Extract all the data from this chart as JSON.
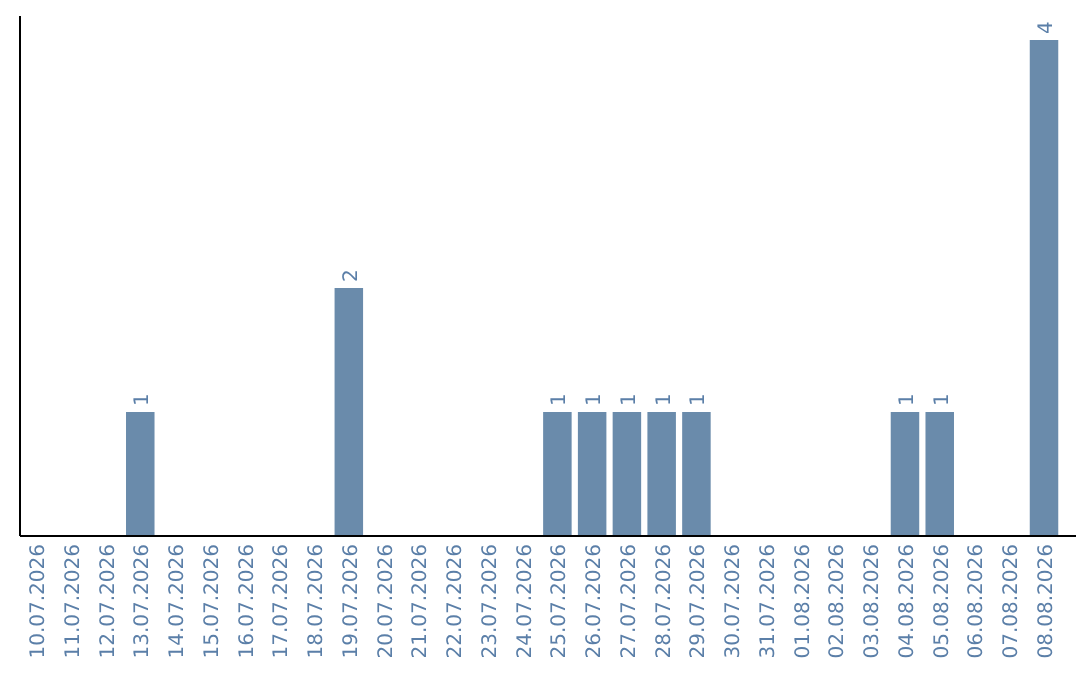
{
  "chart_data": {
    "type": "bar",
    "categories": [
      "10.07.2026",
      "11.07.2026",
      "12.07.2026",
      "13.07.2026",
      "14.07.2026",
      "15.07.2026",
      "16.07.2026",
      "17.07.2026",
      "18.07.2026",
      "19.07.2026",
      "20.07.2026",
      "21.07.2026",
      "22.07.2026",
      "23.07.2026",
      "24.07.2026",
      "25.07.2026",
      "26.07.2026",
      "27.07.2026",
      "28.07.2026",
      "29.07.2026",
      "30.07.2026",
      "31.07.2026",
      "01.08.2026",
      "02.08.2026",
      "03.08.2026",
      "04.08.2026",
      "05.08.2026",
      "06.08.2026",
      "07.08.2026",
      "08.08.2026"
    ],
    "values": [
      0,
      0,
      0,
      1,
      0,
      0,
      0,
      0,
      0,
      2,
      0,
      0,
      0,
      0,
      0,
      1,
      1,
      1,
      1,
      1,
      0,
      0,
      0,
      0,
      0,
      1,
      1,
      0,
      0,
      4
    ],
    "value_labels": [
      null,
      null,
      null,
      "1",
      null,
      null,
      null,
      null,
      null,
      "2",
      null,
      null,
      null,
      null,
      null,
      "1",
      "1",
      "1",
      "1",
      "1",
      null,
      null,
      null,
      null,
      null,
      "1",
      "1",
      null,
      null,
      "4"
    ],
    "color": "#6a8bab",
    "tick_labels": "x"
  }
}
